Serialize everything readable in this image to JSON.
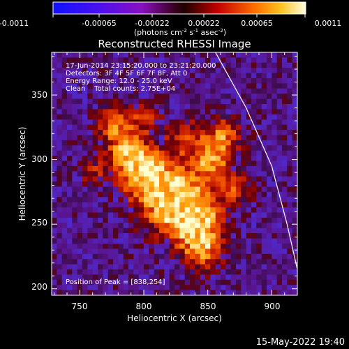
{
  "colorbar": {
    "ticks": [
      "-0.0011",
      "-0.00065",
      "-0.00022",
      "0.00022",
      "0.00065",
      "0.0011"
    ],
    "units": "(photons cm",
    "units_exp1": "-2",
    "units_mid": " s",
    "units_exp2": "-1",
    "units_end": " asec",
    "units_exp3": "-2",
    "units_close": ")",
    "range": [
      -0.0011,
      0.0011
    ]
  },
  "chart_data": {
    "type": "heatmap",
    "title": "Reconstructed RHESSI Image",
    "xlabel": "Heliocentric X (arcsec)",
    "ylabel": "Heliocentric Y (arcsec)",
    "xlim": [
      728,
      920
    ],
    "ylim": [
      195,
      383
    ],
    "x_ticks": [
      750,
      800,
      850,
      900
    ],
    "y_ticks": [
      200,
      250,
      300,
      350
    ],
    "annotations": [
      "17-Jun-2014 23:15:20.000 to 23:21:20.000",
      "Detectors: 3F 4F 5F 6F 7F 8F, Att 0",
      "Energy Range: 12.0 - 25.0 keV",
      "Clean    Total counts: 2.75E+04",
      "Position of Peak = [838,254]"
    ],
    "peak": [
      838,
      254
    ],
    "limb_curve": [
      [
        856,
        383
      ],
      [
        880,
        340
      ],
      [
        900,
        295
      ],
      [
        912,
        250
      ],
      [
        920,
        215
      ]
    ],
    "colormap": "red-temperature"
  },
  "footer": {
    "timestamp": "15-May-2022 19:40"
  }
}
